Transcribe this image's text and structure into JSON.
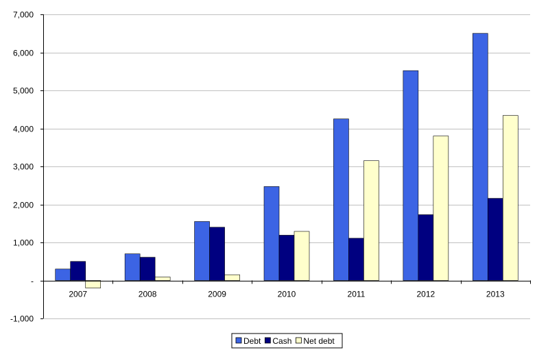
{
  "chart_data": {
    "type": "bar",
    "title": "",
    "xlabel": "",
    "ylabel": "",
    "categories": [
      "2007",
      "2008",
      "2009",
      "2010",
      "2011",
      "2012",
      "2013"
    ],
    "series": [
      {
        "name": "Debt",
        "color": "#3c64e4",
        "values": [
          300,
          700,
          1550,
          2470,
          4250,
          5520,
          6500
        ]
      },
      {
        "name": "Cash",
        "color": "#000080",
        "values": [
          500,
          610,
          1400,
          1190,
          1110,
          1730,
          2160
        ]
      },
      {
        "name": "Net debt",
        "color": "#ffffcc",
        "values": [
          -200,
          90,
          150,
          1290,
          3150,
          3800,
          4340
        ]
      }
    ],
    "ylim": [
      -1000,
      7000
    ],
    "yticks": [
      -1000,
      0,
      1000,
      2000,
      3000,
      4000,
      5000,
      6000,
      7000
    ],
    "ytick_labels": [
      "-1,000",
      "-",
      "1,000",
      "2,000",
      "3,000",
      "4,000",
      "5,000",
      "6,000",
      "7,000"
    ],
    "grid": true,
    "legend_position": "bottom-center"
  }
}
